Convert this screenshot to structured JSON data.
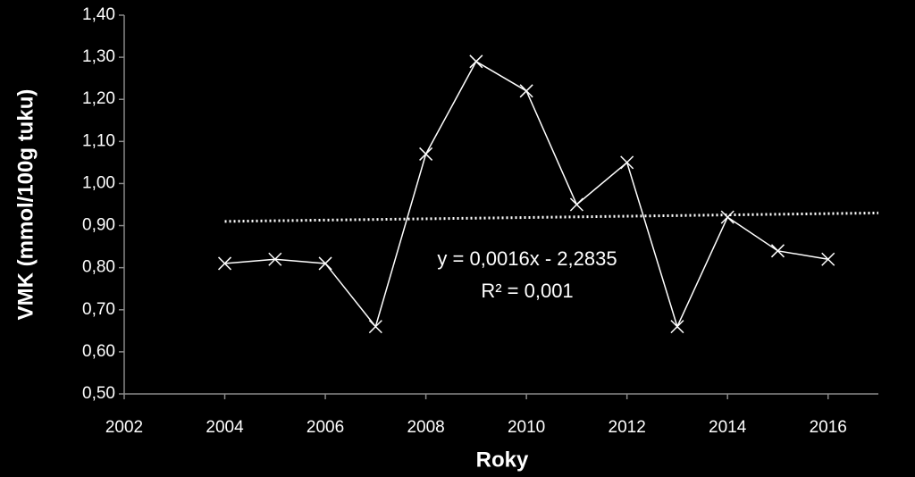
{
  "chart_data": {
    "type": "line",
    "x": [
      2004,
      2005,
      2006,
      2007,
      2008,
      2009,
      2010,
      2011,
      2012,
      2013,
      2014,
      2015,
      2016
    ],
    "values": [
      0.81,
      0.82,
      0.81,
      0.66,
      1.07,
      1.29,
      1.22,
      0.95,
      1.05,
      0.66,
      0.92,
      0.84,
      0.82
    ],
    "color": "#ffffff",
    "marker": "x",
    "trendline": {
      "x": [
        2004,
        2017
      ],
      "values": [
        0.91,
        0.93
      ],
      "style": "dotted"
    },
    "annotations": [
      "y = 0,0016x - 2,2835",
      "R² = 0,001"
    ],
    "x_label": "Roky",
    "y_label": "VMK (mmol/100g tuku)",
    "xlim": [
      2002,
      2017
    ],
    "xticks": [
      2002,
      2004,
      2006,
      2008,
      2010,
      2012,
      2014,
      2016
    ],
    "ylim": [
      0.5,
      1.4
    ],
    "yticks": [
      {
        "value": 0.5,
        "label": "0,50"
      },
      {
        "value": 0.6,
        "label": "0,60"
      },
      {
        "value": 0.7,
        "label": "0,70"
      },
      {
        "value": 0.8,
        "label": "0,80"
      },
      {
        "value": 0.9,
        "label": "0,90"
      },
      {
        "value": 1.0,
        "label": "1,00"
      },
      {
        "value": 1.1,
        "label": "1,10"
      },
      {
        "value": 1.2,
        "label": "1,20"
      },
      {
        "value": 1.3,
        "label": "1,30"
      },
      {
        "value": 1.4,
        "label": "1,40"
      }
    ],
    "grid": false
  }
}
